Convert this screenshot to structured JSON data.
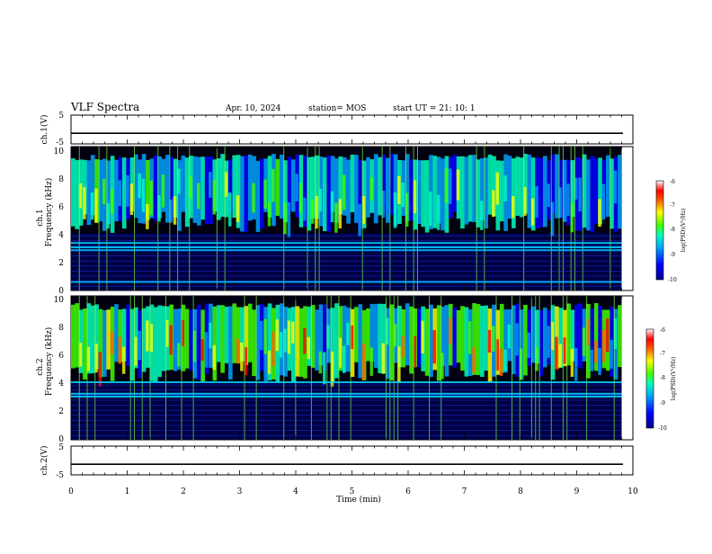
{
  "header": {
    "title": "VLF Spectra",
    "date": "Apr. 10, 2024",
    "station": "station= MOS",
    "start": "start  UT  =   21: 10: 1"
  },
  "chart_data": [
    {
      "type": "line",
      "name": "ch1-waveform",
      "ylabel": "ch.1(V)",
      "ylim": [
        -5,
        5
      ],
      "yticks": [
        "5",
        "-5"
      ],
      "xlim": [
        0,
        10
      ],
      "value": -1.3
    },
    {
      "type": "heatmap",
      "name": "ch1-spectrogram",
      "ylabel_top": "ch.1",
      "ylabel": "Frequency (kHz)",
      "ylim": [
        0,
        10
      ],
      "yticks": [
        "0",
        "2",
        "4",
        "6",
        "8",
        "10"
      ],
      "xlim": [
        0,
        9.8
      ],
      "colorbar": {
        "label": "log(PSD)(V²/Hz)",
        "range": [
          -10,
          -6
        ],
        "ticks": [
          "-6",
          "-7",
          "-8",
          "-9",
          "-10"
        ]
      },
      "features": {
        "interference_kHz": [
          3.0,
          3.3,
          2.8,
          0.6
        ],
        "emission_band_kHz": [
          4,
          9.5
        ]
      }
    },
    {
      "type": "heatmap",
      "name": "ch2-spectrogram",
      "ylabel_top": "ch.2",
      "ylabel": "Frequency (kHz)",
      "ylim": [
        0,
        10
      ],
      "yticks": [
        "0",
        "2",
        "4",
        "6",
        "8",
        "10"
      ],
      "xlim": [
        0,
        9.8
      ],
      "colorbar": {
        "label": "log(PSD)(V²/Hz)",
        "range": [
          -10,
          -6
        ],
        "ticks": [
          "-6",
          "-7",
          "-8",
          "-9",
          "-10"
        ]
      },
      "features": {
        "interference_kHz": [
          3.0,
          3.2,
          4.0
        ],
        "emission_band_kHz": [
          4,
          9.5
        ]
      }
    },
    {
      "type": "line",
      "name": "ch2-waveform",
      "ylabel": "ch.2(V)",
      "ylim": [
        -5,
        5
      ],
      "yticks": [
        "5",
        "-5"
      ],
      "xlim": [
        0,
        10
      ],
      "value": -1.3
    }
  ],
  "xaxis": {
    "label": "Time  (min)",
    "ticks": [
      "0",
      "1",
      "2",
      "3",
      "4",
      "5",
      "6",
      "7",
      "8",
      "9",
      "10"
    ]
  }
}
